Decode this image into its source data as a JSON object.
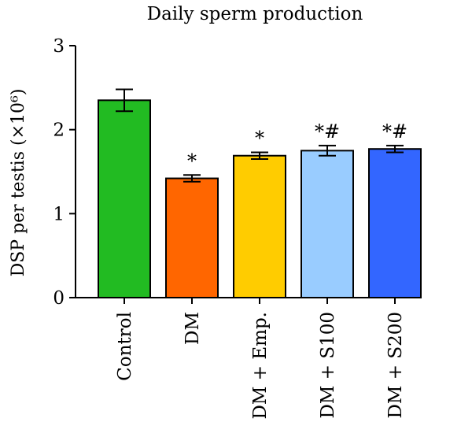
{
  "chart_data": {
    "type": "bar",
    "title": "Daily sperm production",
    "xlabel": "",
    "ylabel": "DSP per testis (×10⁶)",
    "ylim": [
      0,
      3
    ],
    "yticks": [
      "0",
      "1",
      "2",
      "3"
    ],
    "grid": false,
    "legend": "none",
    "categories": [
      "Control",
      "DM",
      "DM + Emp.",
      "DM + S100",
      "DM + S200"
    ],
    "values": [
      2.35,
      1.42,
      1.69,
      1.75,
      1.77
    ],
    "errors": [
      0.13,
      0.04,
      0.04,
      0.06,
      0.04
    ],
    "annotations": [
      "",
      "*",
      "*",
      "*#",
      "*#"
    ],
    "colors": [
      "#22bb22",
      "#ff6600",
      "#ffcc00",
      "#99ccff",
      "#3366ff"
    ]
  }
}
